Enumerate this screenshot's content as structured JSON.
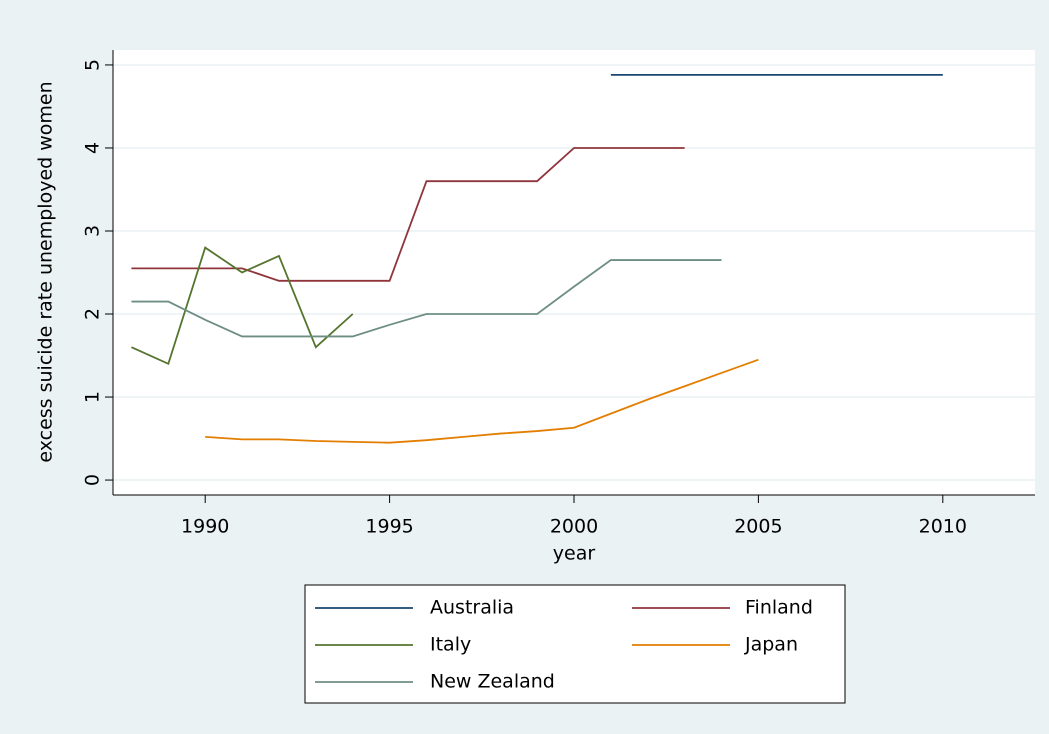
{
  "chart_data": {
    "type": "line",
    "x_label": "year",
    "y_label": "excess suicide rate unemployed women",
    "x": [
      1988,
      1989,
      1990,
      1991,
      1992,
      1993,
      1994,
      1995,
      1996,
      1997,
      1998,
      1999,
      2000,
      2001,
      2002,
      2003,
      2004,
      2005,
      2006,
      2007,
      2008,
      2009,
      2010
    ],
    "series": [
      {
        "name": "Australia",
        "color": "#1a476f",
        "values": [
          null,
          null,
          null,
          null,
          null,
          null,
          null,
          null,
          null,
          null,
          null,
          null,
          null,
          4.88,
          4.88,
          4.88,
          4.88,
          4.88,
          4.88,
          4.88,
          4.88,
          4.88,
          4.88
        ]
      },
      {
        "name": "Finland",
        "color": "#90353b",
        "values": [
          2.55,
          2.55,
          2.55,
          2.55,
          2.4,
          2.4,
          2.4,
          2.4,
          3.6,
          3.6,
          3.6,
          3.6,
          4.0,
          4.0,
          4.0,
          4.0,
          null,
          null,
          null,
          null,
          null,
          null,
          null
        ]
      },
      {
        "name": "Italy",
        "color": "#55752f",
        "values": [
          1.6,
          1.4,
          2.8,
          2.5,
          2.7,
          1.6,
          2.0,
          null,
          null,
          null,
          null,
          null,
          null,
          null,
          null,
          null,
          null,
          null,
          null,
          null,
          null,
          null,
          null
        ]
      },
      {
        "name": "Japan",
        "color": "#e37e00",
        "values": [
          null,
          null,
          0.52,
          0.49,
          0.49,
          0.47,
          0.46,
          0.45,
          0.48,
          0.52,
          0.56,
          0.59,
          0.63,
          0.8,
          0.97,
          1.13,
          1.29,
          1.45,
          null,
          null,
          null,
          null,
          null
        ]
      },
      {
        "name": "New Zealand",
        "color": "#6e8e84",
        "values": [
          2.15,
          2.15,
          1.93,
          1.73,
          1.73,
          1.73,
          1.73,
          1.87,
          2.0,
          2.0,
          2.0,
          2.0,
          2.33,
          2.65,
          2.65,
          2.65,
          2.65,
          null,
          null,
          null,
          null,
          null,
          null
        ]
      }
    ],
    "xlim": [
      1987.5,
      2012.5
    ],
    "xticks": [
      1990,
      1995,
      2000,
      2005,
      2010
    ],
    "ylim": [
      -0.18,
      5.18
    ],
    "yticks": [
      0,
      1,
      2,
      3,
      4,
      5
    ],
    "grid": true,
    "legend": "bottom"
  }
}
